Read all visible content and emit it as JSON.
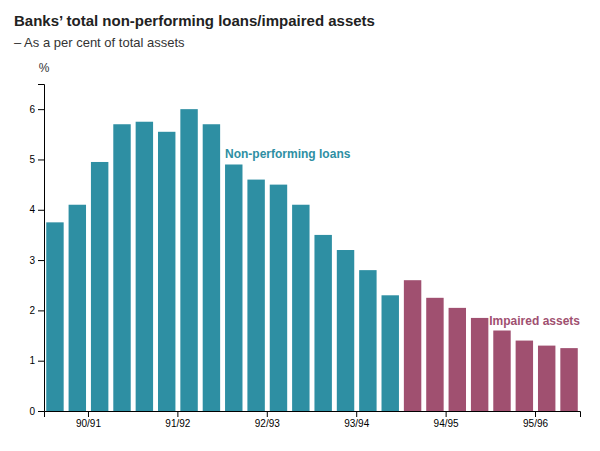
{
  "chart_data": {
    "type": "bar",
    "title": "Banks’ total non-performing loans/impaired assets",
    "subtitle": "– As a per cent of total assets",
    "ylabel": "%",
    "categories": [
      null,
      "90/91",
      null,
      null,
      null,
      "91/92",
      null,
      null,
      null,
      "92/93",
      null,
      null,
      null,
      "93/94",
      null,
      null,
      null,
      "94/95",
      null,
      null,
      null,
      "95/96",
      null,
      null
    ],
    "series": [
      {
        "name": "Non-performing loans",
        "color": "#2e8fa3",
        "values": [
          3.75,
          4.1,
          4.95,
          5.7,
          5.75,
          5.55,
          6.0,
          5.7,
          4.9,
          4.6,
          4.5,
          4.1,
          3.5,
          3.2,
          2.8,
          2.3,
          null,
          null,
          null,
          null,
          null,
          null,
          null,
          null
        ]
      },
      {
        "name": "Impaired assets",
        "color": "#a05070",
        "values": [
          null,
          null,
          null,
          null,
          null,
          null,
          null,
          null,
          null,
          null,
          null,
          null,
          null,
          null,
          null,
          null,
          2.6,
          2.25,
          2.05,
          1.85,
          1.6,
          1.4,
          1.3,
          1.25
        ]
      }
    ],
    "ylim": [
      0,
      6.5
    ],
    "yticks": [
      0,
      1,
      2,
      3,
      4,
      5,
      6
    ]
  }
}
